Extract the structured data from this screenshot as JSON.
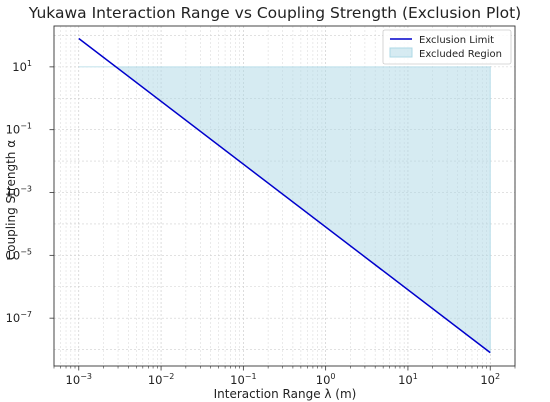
{
  "chart_data": {
    "type": "area",
    "title": "Yukawa Interaction Range vs Coupling Strength (Exclusion Plot)",
    "xlabel": "Interaction Range λ (m)",
    "ylabel": "Coupling Strength α",
    "x_scale": "log",
    "y_scale": "log",
    "xlim": [
      0.0005,
      200
    ],
    "ylim": [
      3e-09,
      200
    ],
    "x_ticks": [
      {
        "value": 0.001,
        "base": "10",
        "exp": "−3"
      },
      {
        "value": 0.01,
        "base": "10",
        "exp": "−2"
      },
      {
        "value": 0.1,
        "base": "10",
        "exp": "−1"
      },
      {
        "value": 1,
        "base": "10",
        "exp": "0"
      },
      {
        "value": 10,
        "base": "10",
        "exp": "1"
      },
      {
        "value": 100,
        "base": "10",
        "exp": "2"
      }
    ],
    "y_ticks": [
      {
        "value": 1e-07,
        "base": "10",
        "exp": "−7"
      },
      {
        "value": 1e-05,
        "base": "10",
        "exp": "−5"
      },
      {
        "value": 0.001,
        "base": "10",
        "exp": "−3"
      },
      {
        "value": 0.1,
        "base": "10",
        "exp": "−1"
      },
      {
        "value": 10,
        "base": "10",
        "exp": "1"
      }
    ],
    "grid": true,
    "legend_position": "top-right",
    "series": [
      {
        "name": "Exclusion Limit",
        "kind": "line",
        "color": "#0000cc",
        "x": [
          0.001,
          100
        ],
        "y": [
          80,
          8e-09
        ]
      },
      {
        "name": "Excluded Region",
        "kind": "fill",
        "color": "#add8e6",
        "x": [
          0.001,
          100
        ],
        "y_upper": 10,
        "y_lower_series": "Exclusion Limit"
      }
    ]
  }
}
